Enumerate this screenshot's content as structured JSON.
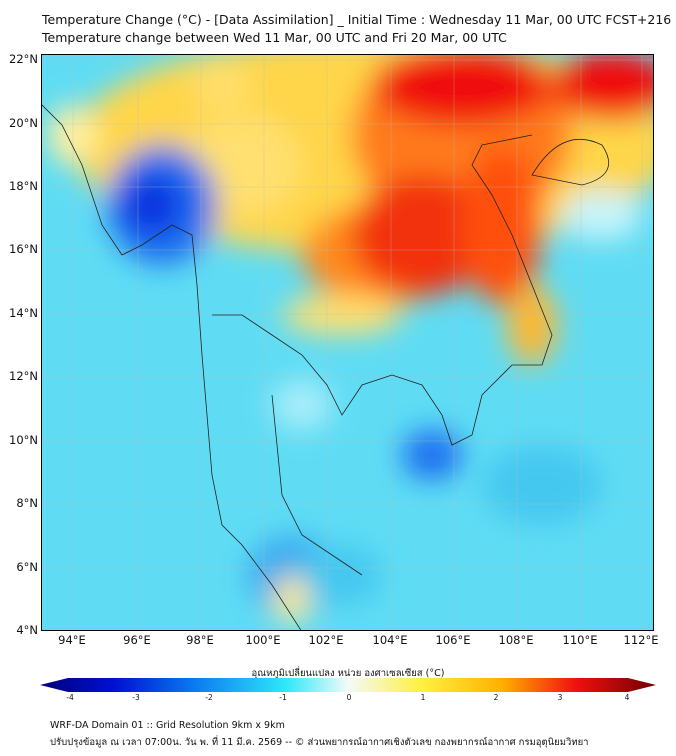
{
  "title": {
    "line1": "Temperature Change (°C) - [Data Assimilation] _ Initial Time : Wednesday 11 Mar, 00 UTC FCST+216",
    "line2": "Temperature change between Wed 11 Mar, 00 UTC and Fri 20 Mar, 00 UTC"
  },
  "lat_labels": [
    "22°N",
    "20°N",
    "18°N",
    "16°N",
    "14°N",
    "12°N",
    "10°N",
    "8°N",
    "6°N",
    "4°N"
  ],
  "lon_labels": [
    "94°E",
    "96°E",
    "98°E",
    "100°E",
    "102°E",
    "104°E",
    "106°E",
    "108°E",
    "110°E",
    "112°E"
  ],
  "colorbar": {
    "label": "อุณหภูมิเปลี่ยนแปลง หน่วย องศาเซลเซียส (°C)",
    "ticks": [
      "-4",
      "-3",
      "-2",
      "-1",
      "0",
      "1",
      "2",
      "3",
      "4"
    ],
    "range": [
      -4,
      4
    ]
  },
  "footer": {
    "line1": "WRF-DA Domain 01 :: Grid Resolution 9km x 9km",
    "line2": "ปรับปรุงข้อมูล ณ เวลา 07:00น. วัน พ. ที่ 11 มี.ค. 2569 -- © ส่วนพยากรณ์อากาศเชิงตัวเลข กองพยากรณ์อากาศ กรมอุตุนิยมวิทยา"
  }
}
